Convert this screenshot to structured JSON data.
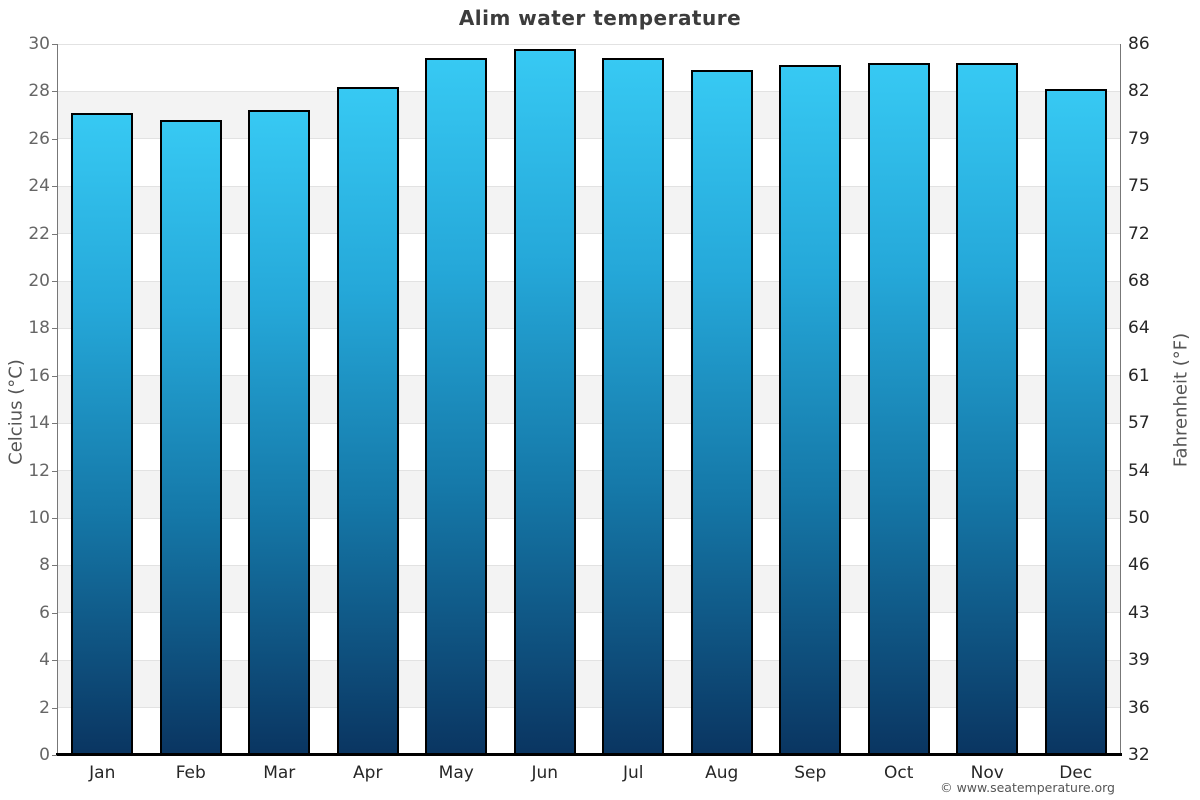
{
  "title": "Alim water temperature",
  "footer": "© www.seatemperature.org",
  "axes": {
    "left_label": "Celcius (°C)",
    "right_label": "Fahrenheit (°F)"
  },
  "chart_data": {
    "type": "bar",
    "title": "Alim water temperature",
    "categories": [
      "Jan",
      "Feb",
      "Mar",
      "Apr",
      "May",
      "Jun",
      "Jul",
      "Aug",
      "Sep",
      "Oct",
      "Nov",
      "Dec"
    ],
    "series": [
      {
        "name": "Water temperature",
        "unit": "°C",
        "values": [
          27.1,
          26.8,
          27.2,
          28.2,
          29.4,
          29.8,
          29.4,
          28.9,
          29.1,
          29.2,
          29.2,
          28.1
        ]
      }
    ],
    "xlabel": "",
    "ylabel": "Celcius (°C)",
    "ylabel_right": "Fahrenheit (°F)",
    "ylim": [
      0,
      30
    ],
    "yticks_celsius": [
      0,
      2,
      4,
      6,
      8,
      10,
      12,
      14,
      16,
      18,
      20,
      22,
      24,
      26,
      28,
      30
    ],
    "yticks_fahrenheit": [
      32,
      36,
      39,
      43,
      46,
      50,
      54,
      57,
      61,
      64,
      68,
      72,
      75,
      79,
      82,
      86
    ],
    "grid": "alternating horizontal bands every 2°C",
    "legend": "none"
  },
  "colors": {
    "bar_gradient_top": "#37c9f3",
    "bar_gradient_upper": "#25a8d9",
    "bar_gradient_lower": "#1578a8",
    "bar_gradient_bottom": "#0a3561",
    "bar_border": "#000000",
    "band_shaded": "#f3f3f3",
    "band_plain": "#ffffff",
    "gridline": "#e2e2e2",
    "axis_spine": "#777777",
    "baseline": "#000000",
    "title_text": "#3c3c3c",
    "tick_text_left": "#666666",
    "tick_text_right": "#262626",
    "month_text": "#262626",
    "axis_label_text": "#555555",
    "footer_text": "#555555",
    "background": "#ffffff"
  }
}
